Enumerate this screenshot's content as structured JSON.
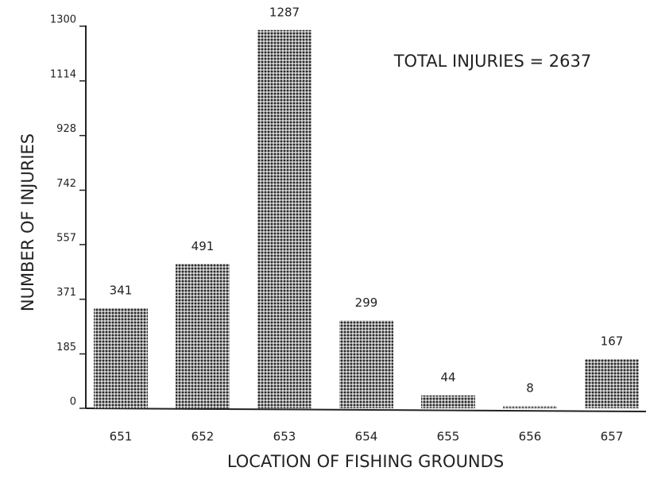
{
  "chart_data": {
    "type": "bar",
    "annotation": "TOTAL INJURIES = 2637",
    "x_label": "LOCATION OF FISHING GROUNDS",
    "y_label": "NUMBER OF INJURIES",
    "categories": [
      "651",
      "652",
      "653",
      "654",
      "655",
      "656",
      "657"
    ],
    "values": [
      341,
      491,
      1287,
      299,
      44,
      8,
      167
    ],
    "color": "#2a2a2a",
    "ylim": [
      0,
      1300
    ],
    "yticks": [
      0,
      185,
      371,
      557,
      742,
      928,
      1114,
      1300
    ]
  }
}
